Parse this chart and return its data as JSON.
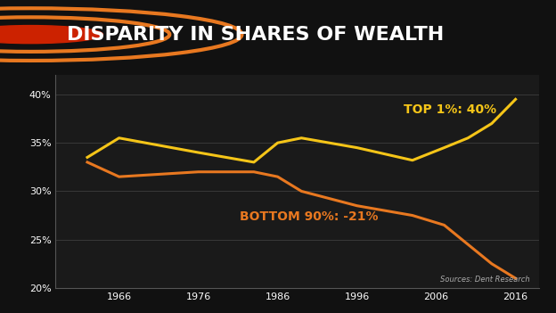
{
  "title": "DISPARITY IN SHARES OF WEALTH",
  "background_color": "#111111",
  "header_bg_color": "#4a4a4a",
  "plot_bg_color": "#1a1a1a",
  "top1_color": "#f5c518",
  "bottom90_color": "#e87820",
  "source_text": "Sources: Dent Research",
  "top1_label": "TOP 1%: 40%",
  "bottom90_label": "BOTTOM 90%: -21%",
  "ylim": [
    20,
    42
  ],
  "yticks": [
    20,
    25,
    30,
    35,
    40
  ],
  "ytick_labels": [
    "20%",
    "25%",
    "30%",
    "35%",
    "40%"
  ],
  "xticks": [
    1966,
    1976,
    1986,
    1996,
    2006,
    2016
  ],
  "top1_x": [
    1962,
    1966,
    1976,
    1983,
    1986,
    1989,
    1996,
    2003,
    2007,
    2010,
    2013,
    2016
  ],
  "top1_y": [
    33.5,
    35.5,
    34.0,
    33.0,
    35.0,
    35.5,
    34.5,
    33.2,
    34.5,
    35.5,
    37.0,
    39.5
  ],
  "bottom90_x": [
    1962,
    1966,
    1976,
    1983,
    1986,
    1989,
    1996,
    2003,
    2007,
    2010,
    2013,
    2016
  ],
  "bottom90_y": [
    33.0,
    31.5,
    32.0,
    32.0,
    31.5,
    30.0,
    28.5,
    27.5,
    26.5,
    24.5,
    22.5,
    21.0
  ],
  "line_width": 2.2,
  "title_fontsize": 16,
  "label_fontsize": 9,
  "tick_fontsize": 8
}
